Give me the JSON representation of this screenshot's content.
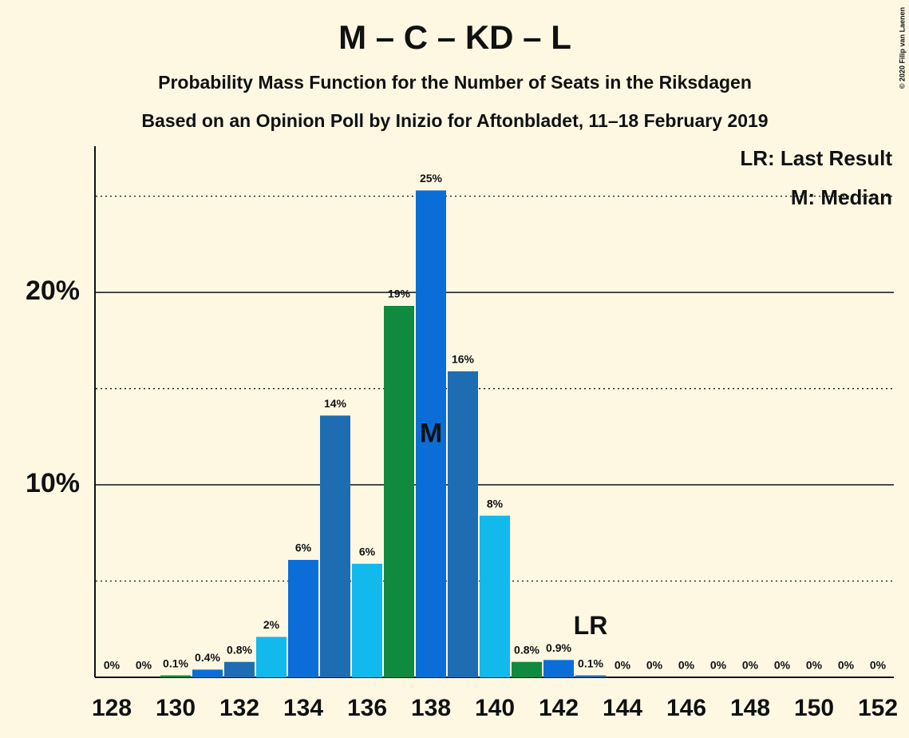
{
  "chart_data": {
    "type": "bar",
    "title": "M – C – KD – L",
    "subtitle": "Probability Mass Function for the Number of Seats in the Riksdagen",
    "subtitle2": "Based on an Opinion Poll by Inizio for Aftonbladet, 11–18 February 2019",
    "copyright": "© 2020 Filip van Laenen",
    "legend": [
      "LR: Last Result",
      "M: Median"
    ],
    "categories": [
      128,
      null,
      130,
      null,
      132,
      null,
      134,
      null,
      136,
      null,
      138,
      null,
      140,
      null,
      142,
      null,
      144,
      null,
      146,
      null,
      148,
      null,
      150,
      null,
      152
    ],
    "values": [
      0,
      0,
      0.1,
      0.4,
      0.8,
      2.1,
      6.1,
      13.6,
      5.9,
      19.3,
      25.3,
      15.9,
      8.4,
      0.8,
      0.9,
      0.1,
      0,
      0,
      0,
      0,
      0,
      0,
      0,
      0,
      0
    ],
    "value_labels": [
      "0%",
      "0%",
      "0.1%",
      "0.4%",
      "0.8%",
      "2%",
      "6%",
      "14%",
      "6%",
      "19%",
      "25%",
      "16%",
      "8%",
      "0.8%",
      "0.9%",
      "0.1%",
      "0%",
      "0%",
      "0%",
      "0%",
      "0%",
      "0%",
      "0%",
      "0%",
      "0%"
    ],
    "colors": [
      "#1e6db3",
      "#12b9ec",
      "#108a3e",
      "#0b6ed8",
      "#1e6db3",
      "#12b9ec",
      "#0b6ed8",
      "#1e6db3",
      "#12b9ec",
      "#108a3e",
      "#0b6ed8",
      "#1e6db3",
      "#12b9ec",
      "#108a3e",
      "#0b6ed8",
      "#1e6db3",
      "#12b9ec",
      "#108a3e",
      "#0b6ed8",
      "#1e6db3",
      "#12b9ec",
      "#108a3e",
      "#0b6ed8",
      "#1e6db3",
      "#12b9ec"
    ],
    "annotations": [
      {
        "text": "M",
        "x": 138
      },
      {
        "text": "LR",
        "x": 143
      }
    ],
    "ylim": [
      0,
      27.6
    ],
    "yticks": [
      {
        "value": 10,
        "label": "10%"
      },
      {
        "value": 20,
        "label": "20%"
      }
    ],
    "minor_grid": [
      5,
      15,
      25
    ],
    "grid": true
  }
}
